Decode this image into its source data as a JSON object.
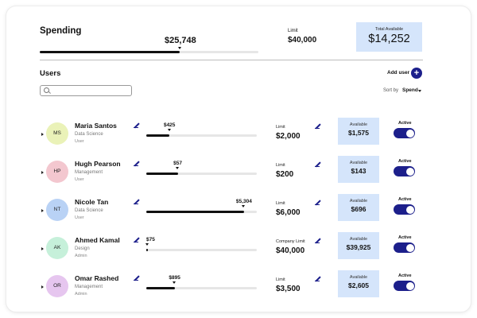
{
  "spending": {
    "title": "Spending",
    "amount": "$25,748",
    "progress": 0.64,
    "limit_label": "Limit",
    "limit_value": "$40,000",
    "available_label": "Total Available",
    "available_value": "$14,252"
  },
  "users": {
    "title": "Users",
    "add_user_label": "Add user",
    "add_icon": "plus-icon",
    "search_placeholder": "",
    "sort_label": "Sort by",
    "sort_value": "Spend"
  },
  "colors": {
    "accent": "#1c1f8b",
    "available_bg": "#d5e5fb",
    "track": "#e6e6e6"
  },
  "rows": [
    {
      "initials": "MS",
      "avatar_color": "#eaf2b8",
      "name": "Maria Santos",
      "dept": "Data Science",
      "role": "User",
      "spent": "$425",
      "progress": 0.21,
      "limit_label": "Limit",
      "limit": "$2,000",
      "available_label": "Available",
      "available": "$1,575",
      "active_label": "Active"
    },
    {
      "initials": "HP",
      "avatar_color": "#f3c7cf",
      "name": "Hugh Pearson",
      "dept": "Management",
      "role": "User",
      "spent": "$57",
      "progress": 0.285,
      "limit_label": "Limit",
      "limit": "$200",
      "available_label": "Available",
      "available": "$143",
      "active_label": "Active"
    },
    {
      "initials": "NT",
      "avatar_color": "#b9d2f5",
      "name": "Nicole Tan",
      "dept": "Data Science",
      "role": "User",
      "spent": "$5,304",
      "progress": 0.884,
      "limit_label": "Limit",
      "limit": "$6,000",
      "available_label": "Available",
      "available": "$696",
      "active_label": "Active"
    },
    {
      "initials": "AK",
      "avatar_color": "#c6f0da",
      "name": "Ahmed Kamal",
      "dept": "Design",
      "role": "Admin",
      "spent": "$75",
      "progress": 0.0019,
      "limit_label": "Company Limit",
      "limit": "$40,000",
      "available_label": "Available",
      "available": "$39,925",
      "active_label": "Active"
    },
    {
      "initials": "OR",
      "avatar_color": "#e6c6ef",
      "name": "Omar Rashed",
      "dept": "Management",
      "role": "Admin",
      "spent": "$895",
      "progress": 0.256,
      "limit_label": "Limit",
      "limit": "$3,500",
      "available_label": "Available",
      "available": "$2,605",
      "active_label": "Active"
    }
  ]
}
